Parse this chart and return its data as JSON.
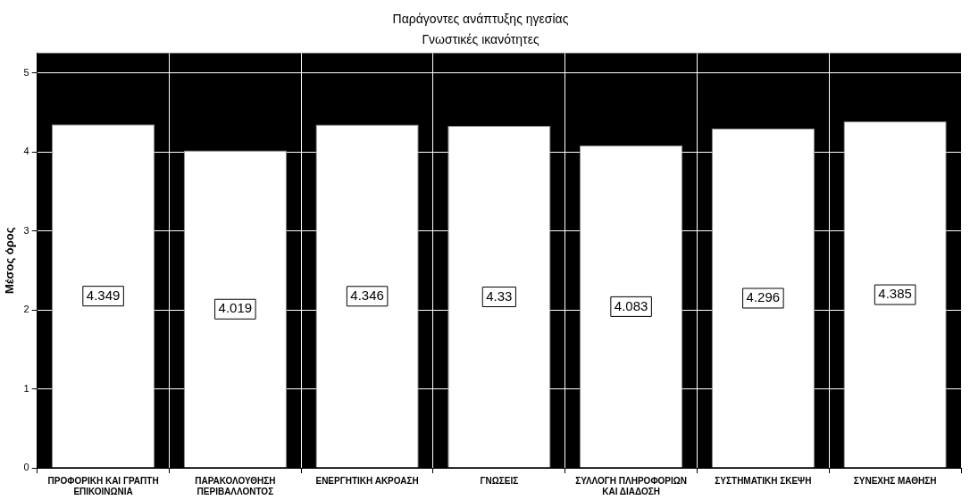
{
  "chart_data": {
    "type": "bar",
    "title": "Παράγοντες ανάπτυξης ηγεσίας",
    "subtitle": "Γνωστικές ικανότητες",
    "ylabel": "Μέσος όρος",
    "categories": [
      "ΠΡΟΦΟΡΙΚΗ ΚΑΙ ΓΡΑΠΤΗ ΕΠΙΚΟΙΝΩΝΙΑ",
      "ΠΑΡΑΚΟΛΟΥΘΗΣΗ ΠΕΡΙΒΑΛΛΟΝΤΟΣ",
      "ΕΝΕΡΓΗΤΙΚΗ ΑΚΡΟΑΣΗ",
      "ΓΝΩΣΕΙΣ",
      "ΣΥΛΛΟΓΗ ΠΛΗΡΟΦΟΡΙΩΝ ΚΑΙ ΔΙΑΔΟΣΗ",
      "ΣΥΣΤΗΜΑΤΙΚΗ  ΣΚΕΨΗ",
      "ΣΥΝΕΧΗΣ ΜΑΘΗΣΗ"
    ],
    "values": [
      4.349,
      4.019,
      4.346,
      4.33,
      4.083,
      4.296,
      4.385
    ],
    "color": "#ffffff",
    "data_labels": true,
    "ylim": [
      0,
      5.25
    ],
    "yticks": [
      0,
      1,
      2,
      3,
      4,
      5
    ],
    "grid": true,
    "legend": false
  }
}
